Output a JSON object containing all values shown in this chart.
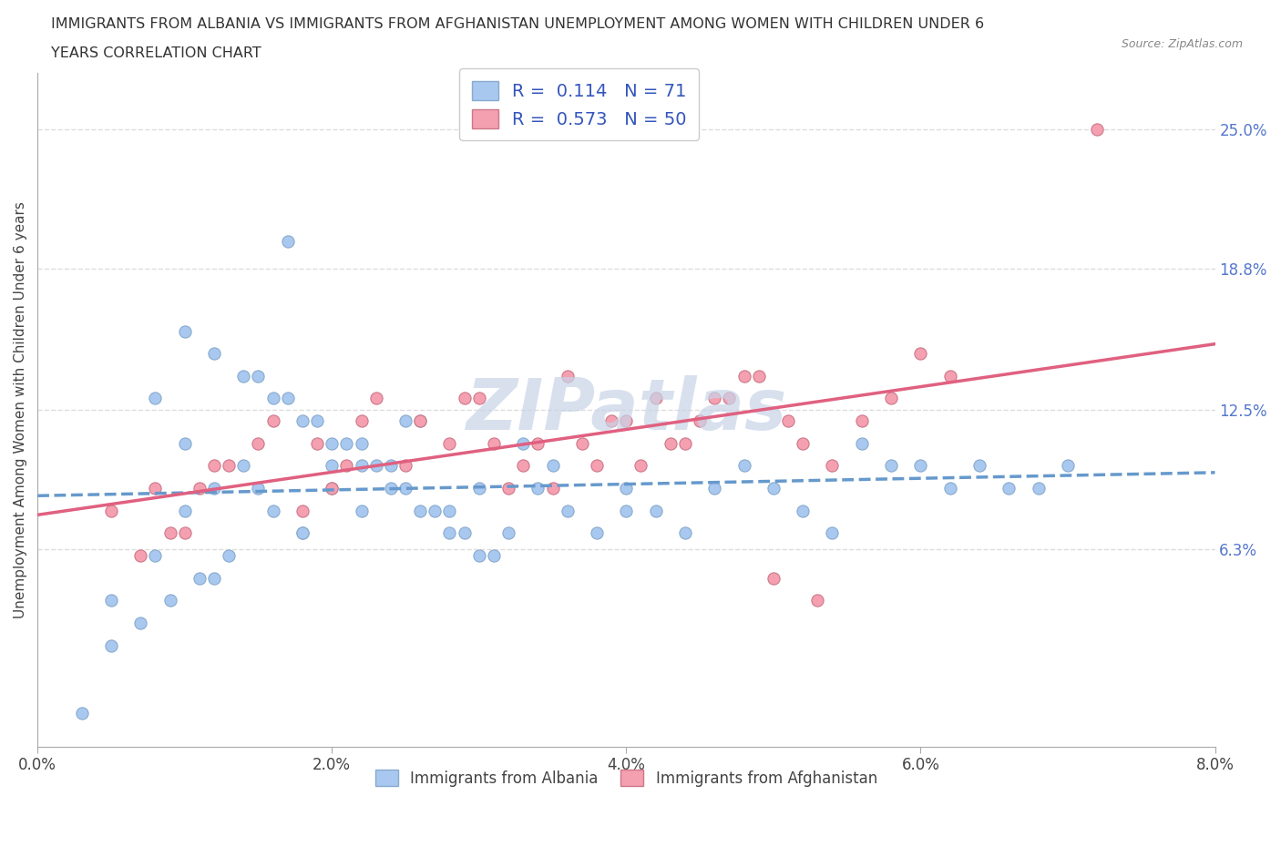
{
  "title_line1": "IMMIGRANTS FROM ALBANIA VS IMMIGRANTS FROM AFGHANISTAN UNEMPLOYMENT AMONG WOMEN WITH CHILDREN UNDER 6",
  "title_line2": "YEARS CORRELATION CHART",
  "source": "Source: ZipAtlas.com",
  "ylabel": "Unemployment Among Women with Children Under 6 years",
  "xlabel_ticks": [
    "0.0%",
    "2.0%",
    "4.0%",
    "6.0%",
    "8.0%"
  ],
  "xlabel_vals": [
    0.0,
    0.02,
    0.04,
    0.06,
    0.08
  ],
  "ylabel_ticks": [
    "6.3%",
    "12.5%",
    "18.8%",
    "25.0%"
  ],
  "ylabel_vals": [
    0.063,
    0.125,
    0.188,
    0.25
  ],
  "xmin": 0.0,
  "xmax": 0.08,
  "ymin": -0.025,
  "ymax": 0.275,
  "albania_color": "#a8c8f0",
  "afghanistan_color": "#f4a0b0",
  "albania_line_color": "#6699cc",
  "afghanistan_line_color": "#e06080",
  "albania_R": 0.114,
  "albania_N": 71,
  "afghanistan_R": 0.573,
  "afghanistan_N": 50,
  "watermark": "ZIPatlas",
  "watermark_color": "#c8d4e8",
  "grid_color": "#dddddd",
  "albania_scatter_x": [
    0.01,
    0.005,
    0.008,
    0.012,
    0.015,
    0.018,
    0.02,
    0.022,
    0.025,
    0.008,
    0.01,
    0.012,
    0.014,
    0.016,
    0.018,
    0.02,
    0.022,
    0.024,
    0.026,
    0.028,
    0.03,
    0.015,
    0.017,
    0.019,
    0.021,
    0.023,
    0.025,
    0.027,
    0.029,
    0.031,
    0.033,
    0.01,
    0.012,
    0.014,
    0.016,
    0.018,
    0.02,
    0.022,
    0.024,
    0.026,
    0.028,
    0.03,
    0.032,
    0.034,
    0.036,
    0.038,
    0.04,
    0.042,
    0.044,
    0.046,
    0.048,
    0.05,
    0.052,
    0.054,
    0.056,
    0.058,
    0.06,
    0.062,
    0.064,
    0.066,
    0.068,
    0.07,
    0.005,
    0.003,
    0.007,
    0.009,
    0.011,
    0.013,
    0.017,
    0.035,
    0.04
  ],
  "albania_scatter_y": [
    0.08,
    0.04,
    0.06,
    0.05,
    0.09,
    0.07,
    0.1,
    0.08,
    0.12,
    0.13,
    0.11,
    0.09,
    0.1,
    0.08,
    0.07,
    0.09,
    0.11,
    0.1,
    0.12,
    0.08,
    0.09,
    0.14,
    0.13,
    0.12,
    0.11,
    0.1,
    0.09,
    0.08,
    0.07,
    0.06,
    0.11,
    0.16,
    0.15,
    0.14,
    0.13,
    0.12,
    0.11,
    0.1,
    0.09,
    0.08,
    0.07,
    0.06,
    0.07,
    0.09,
    0.08,
    0.07,
    0.09,
    0.08,
    0.07,
    0.09,
    0.1,
    0.09,
    0.08,
    0.07,
    0.11,
    0.1,
    0.1,
    0.09,
    0.1,
    0.09,
    0.09,
    0.1,
    0.02,
    -0.01,
    0.03,
    0.04,
    0.05,
    0.06,
    0.2,
    0.1,
    0.08
  ],
  "afghanistan_scatter_x": [
    0.005,
    0.008,
    0.01,
    0.012,
    0.015,
    0.018,
    0.02,
    0.022,
    0.025,
    0.028,
    0.03,
    0.032,
    0.034,
    0.036,
    0.038,
    0.04,
    0.042,
    0.044,
    0.046,
    0.048,
    0.05,
    0.052,
    0.054,
    0.056,
    0.058,
    0.06,
    0.062,
    0.007,
    0.009,
    0.011,
    0.013,
    0.016,
    0.019,
    0.021,
    0.023,
    0.026,
    0.029,
    0.031,
    0.033,
    0.035,
    0.037,
    0.039,
    0.041,
    0.043,
    0.045,
    0.047,
    0.049,
    0.051,
    0.053,
    0.072
  ],
  "afghanistan_scatter_y": [
    0.08,
    0.09,
    0.07,
    0.1,
    0.11,
    0.08,
    0.09,
    0.12,
    0.1,
    0.11,
    0.13,
    0.09,
    0.11,
    0.14,
    0.1,
    0.12,
    0.13,
    0.11,
    0.13,
    0.14,
    0.05,
    0.11,
    0.1,
    0.12,
    0.13,
    0.15,
    0.14,
    0.06,
    0.07,
    0.09,
    0.1,
    0.12,
    0.11,
    0.1,
    0.13,
    0.12,
    0.13,
    0.11,
    0.1,
    0.09,
    0.11,
    0.12,
    0.1,
    0.11,
    0.12,
    0.13,
    0.14,
    0.12,
    0.04,
    0.25
  ]
}
